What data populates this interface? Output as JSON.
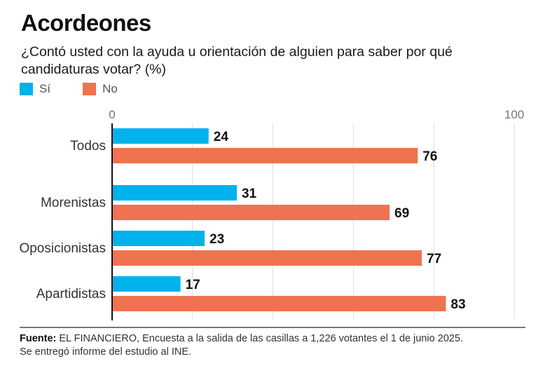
{
  "title": "Acordeones",
  "subtitle": "¿Contó usted con la ayuda u orientación de alguien para saber por qué candidaturas votar? (%)",
  "legend": [
    {
      "label": "Sí",
      "color": "#00b2ec"
    },
    {
      "label": "No",
      "color": "#ef7350"
    }
  ],
  "source": {
    "label": "Fuente:",
    "line1": "EL FINANCIERO, Encuesta a la salida de las casillas a 1,226 votantes el 1 de junio 2025.",
    "line2": "Se entregó informe del estudio al INE."
  },
  "chart_data": {
    "type": "bar",
    "orientation": "horizontal",
    "title": "Acordeones",
    "subtitle": "¿Contó usted con la ayuda u orientación de alguien para saber por qué candidaturas votar? (%)",
    "categories": [
      "Todos",
      "Morenistas",
      "Oposicionistas",
      "Apartidistas"
    ],
    "series": [
      {
        "name": "Sí",
        "color": "#00b2ec",
        "values": [
          24,
          31,
          23,
          17
        ]
      },
      {
        "name": "No",
        "color": "#ef7350",
        "values": [
          76,
          69,
          77,
          83
        ]
      }
    ],
    "xlim": [
      0,
      100
    ],
    "xticks": [
      0,
      100
    ],
    "gridlines": [
      20,
      40,
      60,
      80,
      100
    ],
    "grid": true,
    "legend_position": "top-left",
    "xlabel": "",
    "ylabel": ""
  }
}
